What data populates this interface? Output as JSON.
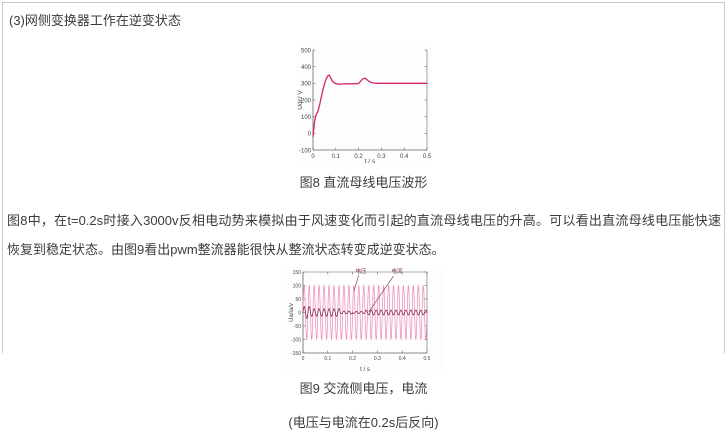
{
  "page": {
    "heading": "(3)网侧变换器工作在逆变状态",
    "caption_fig8": "图8 直流母线电压波形",
    "paragraph": "图8中，在t=0.2s时接入3000v反相电动势来模拟由于风速变化而引起的直流母线电压的升高。可以看出直流母线电压能快速恢复到稳定状态。由图9看出pwm整流器能很快从整流状态转变成逆变状态。",
    "caption_fig9": "图9 交流侧电压，电流",
    "note_fig9": "(电压与电流在0.2s后反向)"
  },
  "ui_colors": {
    "text": "#3c3c3c",
    "frame_border": "#c9c9c9",
    "axis": "#666666",
    "tick_label": "#444444",
    "fig8_line": "#d4246e",
    "fig9_voltage": "#ee8ab8",
    "fig9_current": "#8f2b52",
    "annotation": "#7d2f4e"
  },
  "chart_data": [
    {
      "type": "line",
      "title": "",
      "xlabel": "t / s",
      "ylabel": "Udc/ V",
      "xlim": [
        0,
        0.5
      ],
      "ylim": [
        -100,
        500
      ],
      "grid": false,
      "legend": "none",
      "xticks": [
        [
          0,
          "0"
        ],
        [
          0.1,
          "0.1"
        ],
        [
          0.2,
          "0.2"
        ],
        [
          0.3,
          "0.3"
        ],
        [
          0.4,
          "0.4"
        ],
        [
          0.5,
          "0.5"
        ]
      ],
      "yticks": [
        [
          -100,
          "-100"
        ],
        [
          0,
          "0"
        ],
        [
          100,
          "100"
        ],
        [
          200,
          "200"
        ],
        [
          300,
          "300"
        ],
        [
          400,
          "400"
        ],
        [
          500,
          "500"
        ]
      ],
      "series": [
        {
          "name": "Udc",
          "color": "#d4246e",
          "width": 1.3,
          "points": [
            [
              0,
              -18
            ],
            [
              0.003,
              20
            ],
            [
              0.007,
              70
            ],
            [
              0.011,
              100
            ],
            [
              0.016,
              118
            ],
            [
              0.021,
              130
            ],
            [
              0.027,
              160
            ],
            [
              0.033,
              195
            ],
            [
              0.04,
              240
            ],
            [
              0.048,
              285
            ],
            [
              0.056,
              320
            ],
            [
              0.064,
              343
            ],
            [
              0.07,
              350
            ],
            [
              0.076,
              338
            ],
            [
              0.083,
              318
            ],
            [
              0.09,
              306
            ],
            [
              0.1,
              298
            ],
            [
              0.115,
              295
            ],
            [
              0.13,
              296
            ],
            [
              0.15,
              297
            ],
            [
              0.175,
              297
            ],
            [
              0.2,
              299
            ],
            [
              0.21,
              315
            ],
            [
              0.22,
              328
            ],
            [
              0.23,
              330
            ],
            [
              0.24,
              318
            ],
            [
              0.25,
              308
            ],
            [
              0.265,
              302
            ],
            [
              0.28,
              300
            ],
            [
              0.32,
              300
            ],
            [
              0.36,
              300
            ],
            [
              0.4,
              300
            ],
            [
              0.45,
              300
            ],
            [
              0.5,
              300
            ]
          ]
        }
      ],
      "annotations": []
    },
    {
      "type": "line",
      "title": "",
      "xlabel": "t / s",
      "ylabel": "Ua/ia/v",
      "xlim": [
        0,
        0.5
      ],
      "ylim": [
        -150,
        150
      ],
      "grid": false,
      "legend": "none",
      "xticks": [
        [
          0,
          "0"
        ],
        [
          0.1,
          "0.1"
        ],
        [
          0.2,
          "0.2"
        ],
        [
          0.3,
          "0.3"
        ],
        [
          0.4,
          "0.4"
        ],
        [
          0.5,
          "0.5"
        ]
      ],
      "yticks": [
        [
          -150,
          "-150"
        ],
        [
          -100,
          "-100"
        ],
        [
          -50,
          "-50"
        ],
        [
          0,
          "0"
        ],
        [
          50,
          "50"
        ],
        [
          100,
          "100"
        ],
        [
          150,
          "150"
        ]
      ],
      "series": [
        {
          "name": "电压",
          "color": "#ee8ab8",
          "width": 0.7,
          "wave": {
            "freq_hz": 50,
            "samples": 1600,
            "segments": [
              {
                "t0": 0,
                "t1": 0.5,
                "amp": 100,
                "phase": 0
              }
            ]
          }
        },
        {
          "name": "电流",
          "color": "#8f2b52",
          "width": 0.8,
          "wave": {
            "freq_hz": 50,
            "samples": 1600,
            "segments": [
              {
                "t0": 0,
                "t1": 0.03,
                "amp": 22,
                "phase": 0
              },
              {
                "t0": 0.03,
                "t1": 0.15,
                "amp": 14,
                "phase": 0
              },
              {
                "t0": 0.15,
                "t1": 0.2,
                "amp": 5,
                "phase": 0
              },
              {
                "t0": 0.2,
                "t1": 0.25,
                "amp": 4,
                "phase": 3.1416
              },
              {
                "t0": 0.25,
                "t1": 0.5,
                "amp": 9,
                "phase": 3.1416
              }
            ]
          }
        }
      ],
      "annotations": [
        {
          "text": "电压",
          "at": [
            0.234,
            147
          ],
          "line": [
            [
              0.225,
              138
            ],
            [
              0.205,
              80
            ]
          ],
          "color": "#7d2f4e"
        },
        {
          "text": "电流",
          "at": [
            0.379,
            147
          ],
          "line": [
            [
              0.365,
              135
            ],
            [
              0.265,
              2
            ]
          ],
          "color": "#7d2f4e"
        }
      ]
    }
  ]
}
